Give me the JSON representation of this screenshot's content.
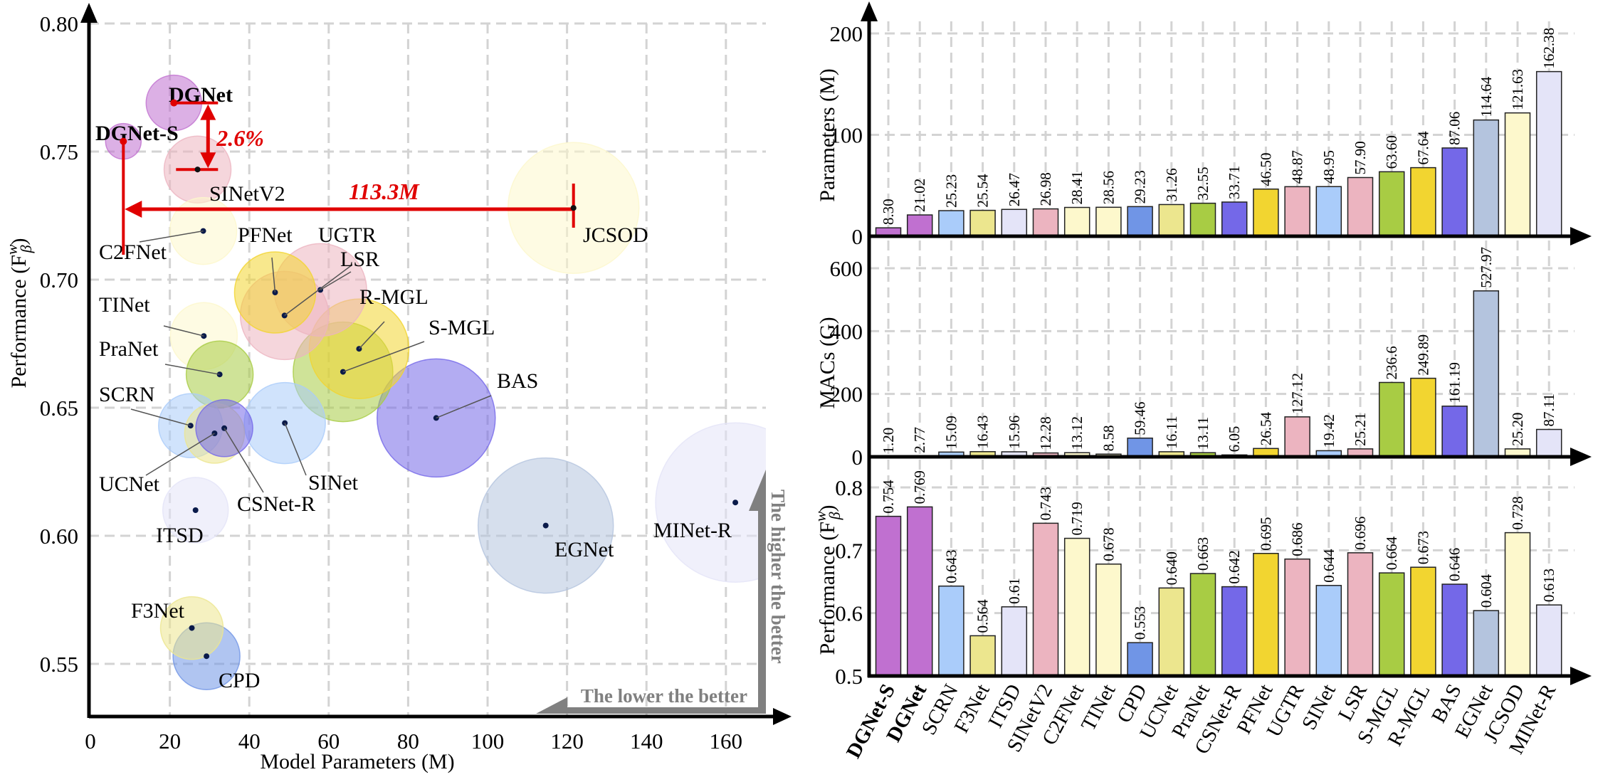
{
  "chart_data": [
    {
      "type": "scatter",
      "subtype": "bubble",
      "xlabel": "Model Parameters (M)",
      "ylabel": "Performance (F",
      "ylabel_sub": "β",
      "ylabel_sup": "w",
      "ylabel_end": ")",
      "xlim": [
        0,
        170
      ],
      "ylim": [
        0.53,
        0.8
      ],
      "xticks": [
        0,
        20,
        40,
        60,
        80,
        100,
        120,
        140,
        160
      ],
      "yticks": [
        "0.55",
        "0.60",
        "0.65",
        "0.70",
        "0.75",
        "0.80"
      ],
      "grid": true,
      "annotations": {
        "perf_gain": "2.6%",
        "param_gap": "113.3M",
        "higher_better": "The higher the better",
        "lower_better": "The lower the better"
      }
    },
    {
      "type": "bar",
      "ylabel": "Parameters (M)",
      "ylim": [
        0,
        200
      ],
      "yticks": [
        "0",
        "100",
        "200"
      ],
      "grid": true,
      "values": [
        8.3,
        21.02,
        25.23,
        25.54,
        26.47,
        26.98,
        28.41,
        28.56,
        29.23,
        31.26,
        32.55,
        33.71,
        46.5,
        48.87,
        48.95,
        57.9,
        63.6,
        67.64,
        87.06,
        114.64,
        121.63,
        162.38
      ],
      "labels": [
        "8.30",
        "21.02",
        "25.23",
        "25.54",
        "26.47",
        "26.98",
        "28.41",
        "28.56",
        "29.23",
        "31.26",
        "32.55",
        "33.71",
        "46.50",
        "48.87",
        "48.95",
        "57.90",
        "63.60",
        "67.64",
        "87.06",
        "114.64",
        "121.63",
        "162.38"
      ]
    },
    {
      "type": "bar",
      "ylabel": "MACs (G)",
      "ylim": [
        0,
        600
      ],
      "yticks": [
        "0",
        "200",
        "400",
        "600"
      ],
      "grid": true,
      "values": [
        1.2,
        2.77,
        15.09,
        16.43,
        15.96,
        12.28,
        13.12,
        8.58,
        59.46,
        16.11,
        13.11,
        6.05,
        26.54,
        127.12,
        19.42,
        25.21,
        236.6,
        249.89,
        161.19,
        527.97,
        25.2,
        87.11
      ],
      "labels": [
        "1.20",
        "2.77",
        "15.09",
        "16.43",
        "15.96",
        "12.28",
        "13.12",
        "8.58",
        "59.46",
        "16.11",
        "13.11",
        "6.05",
        "26.54",
        "127.12",
        "19.42",
        "25.21",
        "236.6",
        "249.89",
        "161.19",
        "527.97",
        "25.20",
        "87.11"
      ]
    },
    {
      "type": "bar",
      "ylabel": "Performance (F",
      "ylabel_sub": "β",
      "ylabel_sup": "w",
      "ylabel_end": ")",
      "ylim": [
        0.5,
        0.8
      ],
      "yticks": [
        "0.5",
        "0.6",
        "0.7",
        "0.8"
      ],
      "grid": true,
      "values": [
        0.754,
        0.769,
        0.643,
        0.564,
        0.61,
        0.743,
        0.719,
        0.678,
        0.553,
        0.64,
        0.663,
        0.642,
        0.695,
        0.686,
        0.644,
        0.696,
        0.664,
        0.673,
        0.646,
        0.604,
        0.728,
        0.613
      ],
      "labels": [
        "0.754",
        "0.769",
        "0.643",
        "0.564",
        "0.61",
        "0.743",
        "0.719",
        "0.678",
        "0.553",
        "0.640",
        "0.663",
        "0.642",
        "0.695",
        "0.686",
        "0.644",
        "0.696",
        "0.664",
        "0.673",
        "0.646",
        "0.604",
        "0.728",
        "0.613"
      ]
    }
  ],
  "models": [
    "DGNet-S",
    "DGNet",
    "SCRN",
    "F3Net",
    "ITSD",
    "SINetV2",
    "C2FNet",
    "TINet",
    "CPD",
    "UCNet",
    "PraNet",
    "CSNet-R",
    "PFNet",
    "UGTR",
    "SINet",
    "LSR",
    "S-MGL",
    "R-MGL",
    "BAS",
    "EGNet",
    "JCSOD",
    "MINet-R"
  ],
  "bold_models": [
    "DGNet-S",
    "DGNet"
  ],
  "colors": [
    "#c070d0",
    "#c070d0",
    "#aaccfa",
    "#ece68e",
    "#e4e4f8",
    "#ecb4c0",
    "#fdf8cc",
    "#fdf8cc",
    "#7095e6",
    "#ece68e",
    "#a8cc44",
    "#7468e8",
    "#f2d530",
    "#ecb4c0",
    "#aaccfa",
    "#ecb4c0",
    "#a8cc44",
    "#f2d530",
    "#7468e8",
    "#b4c4de",
    "#fdf8cc",
    "#e4e4f8"
  ],
  "accent_color": "#e00000",
  "annotation_gray": "#808080"
}
